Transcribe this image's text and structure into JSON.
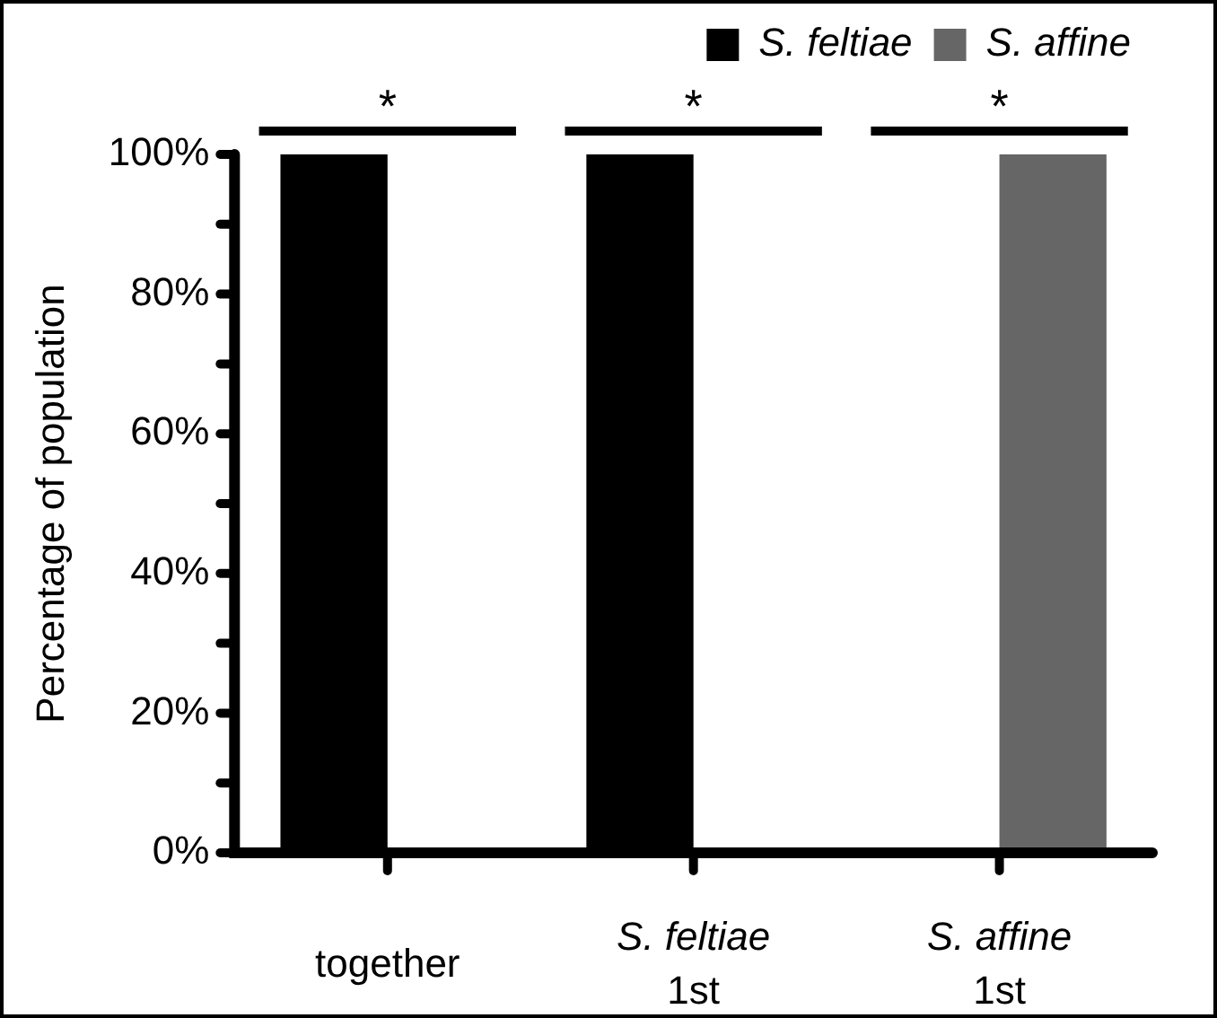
{
  "chart_data": {
    "type": "bar",
    "ylabel": "Percentage of population",
    "categories": [
      "together",
      "S. feltiae 1st",
      "S. affine 1st"
    ],
    "series": [
      {
        "name": "S. feltiae",
        "color": "#000000",
        "values": [
          100,
          100,
          0
        ]
      },
      {
        "name": "S. affine",
        "color": "#666666",
        "values": [
          0,
          0,
          100
        ]
      }
    ],
    "ylim": [
      0,
      100
    ],
    "yticks": [
      {
        "value": 0,
        "label": "0%"
      },
      {
        "value": 10,
        "label": null
      },
      {
        "value": 20,
        "label": "20%"
      },
      {
        "value": 30,
        "label": null
      },
      {
        "value": 40,
        "label": "40%"
      },
      {
        "value": 50,
        "label": null
      },
      {
        "value": 60,
        "label": "60%"
      },
      {
        "value": 70,
        "label": null
      },
      {
        "value": 80,
        "label": "80%"
      },
      {
        "value": 90,
        "label": null
      },
      {
        "value": 100,
        "label": "100%"
      }
    ],
    "annotations": [
      "*",
      "*",
      "*"
    ],
    "grid": false,
    "legend": "top right"
  }
}
